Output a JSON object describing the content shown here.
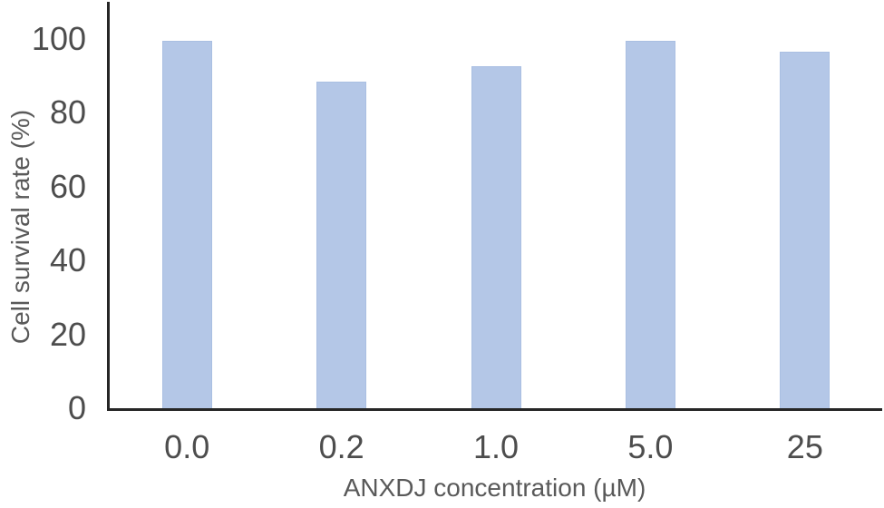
{
  "chart_data": {
    "type": "bar",
    "title": "",
    "categories": [
      "0.0",
      "0.2",
      "1.0",
      "5.0",
      "25"
    ],
    "values": [
      100,
      89,
      93,
      100,
      97
    ],
    "xlabel": "ANXDJ concentration (µM)",
    "ylabel": "Cell survival rate (%)",
    "yticks": [
      0,
      20,
      40,
      60,
      80,
      100
    ],
    "ylim": [
      0,
      110
    ],
    "grid": false,
    "legend": "none",
    "bar_color": "#b4c7e7",
    "bar_border_color": "#aabfe2",
    "axis_line_color": "#262626",
    "tick_label_color": "#4d4d4d",
    "axis_title_color": "#595959"
  }
}
